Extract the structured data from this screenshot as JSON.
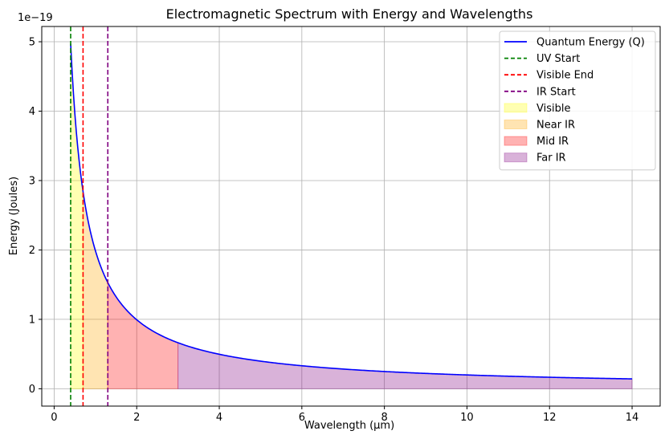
{
  "chart_data": {
    "type": "line",
    "title": "Electromagnetic Spectrum with Energy and Wavelengths",
    "xlabel": "Wavelength (µm)",
    "ylabel": "Energy (Joules)",
    "y_offset_text": "1e−19",
    "xlim": [
      -0.3,
      14.68
    ],
    "ylim": [
      -0.25,
      5.22
    ],
    "y_scale_factor": 1e-19,
    "xticks": [
      0,
      2,
      4,
      6,
      8,
      10,
      12,
      14
    ],
    "xtick_labels": [
      "0",
      "2",
      "4",
      "6",
      "8",
      "10",
      "12",
      "14"
    ],
    "yticks": [
      0,
      1,
      2,
      3,
      4,
      5
    ],
    "ytick_labels": [
      "0",
      "1",
      "2",
      "3",
      "4",
      "5"
    ],
    "grid": true,
    "legend_position": "upper right",
    "series": [
      {
        "name": "Quantum Energy (Q)",
        "kind": "curve",
        "color": "#0000ff",
        "x": [
          0.4,
          0.5,
          0.6,
          0.7,
          0.8,
          1.0,
          1.2,
          1.3,
          1.5,
          2.0,
          2.5,
          3.0,
          4.0,
          5.0,
          6.0,
          7.0,
          8.0,
          9.0,
          10.0,
          11.0,
          12.0,
          13.0,
          14.0
        ],
        "y": [
          4.97,
          3.97,
          3.31,
          2.84,
          2.48,
          1.99,
          1.66,
          1.53,
          1.32,
          0.99,
          0.79,
          0.66,
          0.5,
          0.4,
          0.33,
          0.28,
          0.25,
          0.22,
          0.2,
          0.18,
          0.17,
          0.15,
          0.14
        ]
      },
      {
        "name": "UV Start",
        "kind": "vline",
        "x": 0.4,
        "color": "#008000"
      },
      {
        "name": "Visible End",
        "kind": "vline",
        "x": 0.7,
        "color": "#ff0000"
      },
      {
        "name": "IR Start",
        "kind": "vline",
        "x": 1.3,
        "color": "#800080"
      },
      {
        "name": "Visible",
        "kind": "band",
        "x_range": [
          0.4,
          0.7
        ],
        "color": "#ffff00",
        "alpha": 0.3
      },
      {
        "name": "Near IR",
        "kind": "band",
        "x_range": [
          0.7,
          1.3
        ],
        "color": "#ffa500",
        "alpha": 0.3
      },
      {
        "name": "Mid IR",
        "kind": "band",
        "x_range": [
          1.3,
          3.0
        ],
        "color": "#ff0000",
        "alpha": 0.3
      },
      {
        "name": "Far IR",
        "kind": "band",
        "x_range": [
          3.0,
          14.0
        ],
        "color": "#800080",
        "alpha": 0.3
      }
    ]
  }
}
